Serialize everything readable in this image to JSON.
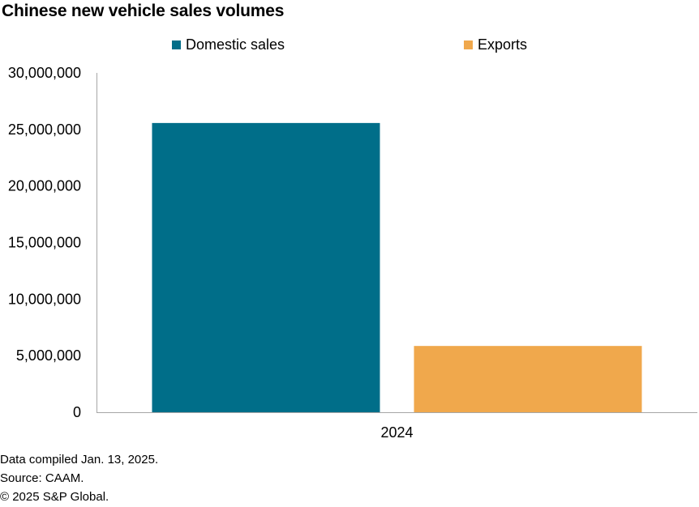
{
  "chart_data": {
    "type": "bar",
    "title": "Chinese new vehicle sales volumes",
    "categories": [
      "2024"
    ],
    "series": [
      {
        "name": "Domestic sales",
        "color": "#006e89",
        "values": [
          25570000
        ]
      },
      {
        "name": "Exports",
        "color": "#f0a84c",
        "values": [
          5860000
        ]
      }
    ],
    "yticks": [
      "0",
      "5,000,000",
      "10,000,000",
      "15,000,000",
      "20,000,000",
      "25,000,000",
      "30,000,000"
    ],
    "ytick_values": [
      0,
      5000000,
      10000000,
      15000000,
      20000000,
      25000000,
      30000000
    ],
    "ylim": [
      0,
      30000000
    ],
    "xlabel": "",
    "ylabel": "",
    "grid": false,
    "legend": "top-center"
  },
  "footer": {
    "compiled": "Data compiled Jan. 13, 2025.",
    "source": "Source: CAAM.",
    "copyright": "© 2025 S&P Global."
  },
  "colors": {
    "axis": "#a6a6a6"
  }
}
